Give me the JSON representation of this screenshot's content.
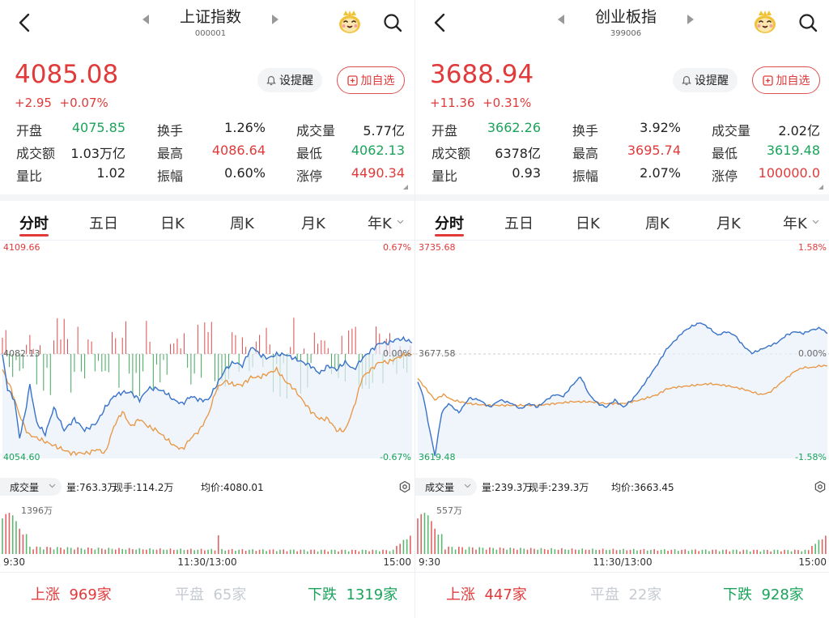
{
  "colors": {
    "up": "#e03a3a",
    "down": "#1aa35a",
    "flat_text": "#c6cbd2",
    "price_line": "#3873c9",
    "avg_line": "#e8953f",
    "area_fill": "#e9f0fa"
  },
  "icons": {
    "back": "chevron-left-icon",
    "prev": "triangle-left-icon",
    "next": "triangle-right-icon",
    "mascot": "mascot-icon",
    "search": "search-icon",
    "bell": "bell-icon",
    "add": "add-box-icon",
    "settings": "gear-icon",
    "dropdown": "chevron-down-icon"
  },
  "panels": [
    {
      "title": "上证指数",
      "code": "000001",
      "price": "4085.08",
      "change": "+2.95",
      "change_pct": "+0.07%",
      "alert_label": "设提醒",
      "watch_label": "加自选",
      "stats": [
        {
          "label": "开盘",
          "value": "4075.85",
          "color": "down"
        },
        {
          "label": "换手",
          "value": "1.26%",
          "color": "normal"
        },
        {
          "label": "成交量",
          "value": "5.77亿",
          "color": "normal"
        },
        {
          "label": "成交额",
          "value": "1.03万亿",
          "color": "normal"
        },
        {
          "label": "最高",
          "value": "4086.64",
          "color": "up"
        },
        {
          "label": "最低",
          "value": "4062.13",
          "color": "down"
        },
        {
          "label": "量比",
          "value": "1.02",
          "color": "normal"
        },
        {
          "label": "振幅",
          "value": "0.60%",
          "color": "normal"
        },
        {
          "label": "涨停",
          "value": "4490.34",
          "color": "up"
        }
      ],
      "tabs": [
        "分时",
        "五日",
        "日K",
        "周K",
        "月K",
        "年K"
      ],
      "axis": {
        "top_price": "4109.66",
        "top_pct": "0.67%",
        "mid_price": "4082.13",
        "mid_pct": "0.00%",
        "bot_price": "4054.60",
        "bot_pct": "-0.67%"
      },
      "volume_bar": {
        "label": "成交量",
        "vol": "量:763.3万",
        "now": "现手:114.2万",
        "avg": "均价:4080.01"
      },
      "vol_max_label": "1396万",
      "time_labels": [
        "9:30",
        "11:30/13:00",
        "15:00"
      ],
      "breadth": {
        "up_label": "上涨",
        "up_count": "969家",
        "flat_label": "平盘",
        "flat_count": "65家",
        "down_label": "下跌",
        "down_count": "1319家"
      },
      "chart_data": {
        "type": "line",
        "y_range": [
          4054.6,
          4109.66
        ],
        "prev_close": 4082.13,
        "n_points": 240,
        "price_series": {
          "name": "",
          "anchors": [
            [
              0,
              4082.0
            ],
            [
              3,
              4073
            ],
            [
              7,
              4070
            ],
            [
              10,
              4060
            ],
            [
              13,
              4066
            ],
            [
              16,
              4074
            ],
            [
              20,
              4064
            ],
            [
              25,
              4061
            ],
            [
              30,
              4068
            ],
            [
              36,
              4062
            ],
            [
              42,
              4065
            ],
            [
              48,
              4062
            ],
            [
              55,
              4064
            ],
            [
              60,
              4068
            ],
            [
              65,
              4071
            ],
            [
              70,
              4072
            ],
            [
              75,
              4072
            ],
            [
              80,
              4070
            ],
            [
              85,
              4073
            ],
            [
              90,
              4073
            ],
            [
              95,
              4072
            ],
            [
              100,
              4070
            ],
            [
              105,
              4069
            ],
            [
              110,
              4071
            ],
            [
              115,
              4070
            ],
            [
              120,
              4070
            ],
            [
              125,
              4074
            ],
            [
              130,
              4078
            ],
            [
              135,
              4080
            ],
            [
              140,
              4079
            ],
            [
              143,
              4082
            ],
            [
              146,
              4084
            ],
            [
              150,
              4082
            ],
            [
              155,
              4081
            ],
            [
              160,
              4082
            ],
            [
              165,
              4082
            ],
            [
              170,
              4081
            ],
            [
              175,
              4080
            ],
            [
              180,
              4079
            ],
            [
              185,
              4077
            ],
            [
              190,
              4079
            ],
            [
              195,
              4078
            ],
            [
              200,
              4080
            ],
            [
              205,
              4078
            ],
            [
              210,
              4081
            ],
            [
              215,
              4083
            ],
            [
              220,
              4085
            ],
            [
              225,
              4085
            ],
            [
              230,
              4086
            ],
            [
              235,
              4086
            ],
            [
              239,
              4085.08
            ]
          ]
        },
        "avg_series": {
          "name": "",
          "anchors": [
            [
              0,
              4078
            ],
            [
              5,
              4073
            ],
            [
              10,
              4066
            ],
            [
              15,
              4061
            ],
            [
              20,
              4060
            ],
            [
              25,
              4059
            ],
            [
              30,
              4058
            ],
            [
              35,
              4057
            ],
            [
              40,
              4056
            ],
            [
              45,
              4056
            ],
            [
              50,
              4056
            ],
            [
              55,
              4057
            ],
            [
              60,
              4056
            ],
            [
              65,
              4063
            ],
            [
              70,
              4067
            ],
            [
              75,
              4063
            ],
            [
              80,
              4065
            ],
            [
              85,
              4063
            ],
            [
              90,
              4062
            ],
            [
              95,
              4060
            ],
            [
              100,
              4058
            ],
            [
              105,
              4057
            ],
            [
              110,
              4060
            ],
            [
              115,
              4062
            ],
            [
              120,
              4066
            ],
            [
              125,
              4073
            ],
            [
              130,
              4075
            ],
            [
              135,
              4074
            ],
            [
              140,
              4074
            ],
            [
              145,
              4076
            ],
            [
              150,
              4076
            ],
            [
              155,
              4077
            ],
            [
              160,
              4078
            ],
            [
              165,
              4075
            ],
            [
              170,
              4073
            ],
            [
              175,
              4070
            ],
            [
              180,
              4067
            ],
            [
              185,
              4065
            ],
            [
              190,
              4065
            ],
            [
              195,
              4062
            ],
            [
              200,
              4062
            ],
            [
              205,
              4068
            ],
            [
              210,
              4076
            ],
            [
              215,
              4078
            ],
            [
              220,
              4080
            ],
            [
              225,
              4080
            ],
            [
              230,
              4081
            ],
            [
              235,
              4082
            ],
            [
              239,
              4082
            ]
          ]
        },
        "vol_max_wan": 1396
      }
    },
    {
      "title": "创业板指",
      "code": "399006",
      "price": "3688.94",
      "change": "+11.36",
      "change_pct": "+0.31%",
      "alert_label": "设提醒",
      "watch_label": "加自选",
      "stats": [
        {
          "label": "开盘",
          "value": "3662.26",
          "color": "down"
        },
        {
          "label": "换手",
          "value": "3.92%",
          "color": "normal"
        },
        {
          "label": "成交量",
          "value": "2.02亿",
          "color": "normal"
        },
        {
          "label": "成交额",
          "value": "6378亿",
          "color": "normal"
        },
        {
          "label": "最高",
          "value": "3695.74",
          "color": "up"
        },
        {
          "label": "最低",
          "value": "3619.48",
          "color": "down"
        },
        {
          "label": "量比",
          "value": "0.93",
          "color": "normal"
        },
        {
          "label": "振幅",
          "value": "2.07%",
          "color": "normal"
        },
        {
          "label": "涨停",
          "value": "100000.0",
          "color": "up"
        }
      ],
      "tabs": [
        "分时",
        "五日",
        "日K",
        "周K",
        "月K",
        "年K"
      ],
      "axis": {
        "top_price": "3735.68",
        "top_pct": "1.58%",
        "mid_price": "3677.58",
        "mid_pct": "0.00%",
        "bot_price": "3619.48",
        "bot_pct": "-1.58%"
      },
      "volume_bar": {
        "label": "成交量",
        "vol": "量:239.3万",
        "now": "现手:239.3万",
        "avg": "均价:3663.45"
      },
      "vol_max_label": "557万",
      "time_labels": [
        "9:30",
        "11:30/13:00",
        "15:00"
      ],
      "breadth": {
        "up_label": "上涨",
        "up_count": "447家",
        "flat_label": "平盘",
        "flat_count": "22家",
        "down_label": "下跌",
        "down_count": "928家"
      },
      "chart_data": {
        "type": "line",
        "y_range": [
          3619.48,
          3735.68
        ],
        "prev_close": 3677.58,
        "n_points": 240,
        "price_series": {
          "name": "",
          "anchors": [
            [
              0,
              3662
            ],
            [
              3,
              3655
            ],
            [
              6,
              3640
            ],
            [
              10,
              3621
            ],
            [
              14,
              3645
            ],
            [
              18,
              3650
            ],
            [
              24,
              3645
            ],
            [
              30,
              3653
            ],
            [
              36,
              3652
            ],
            [
              42,
              3648
            ],
            [
              48,
              3652
            ],
            [
              55,
              3650
            ],
            [
              60,
              3647
            ],
            [
              65,
              3650
            ],
            [
              70,
              3648
            ],
            [
              75,
              3652
            ],
            [
              80,
              3655
            ],
            [
              85,
              3654
            ],
            [
              90,
              3660
            ],
            [
              95,
              3665
            ],
            [
              100,
              3655
            ],
            [
              105,
              3650
            ],
            [
              110,
              3648
            ],
            [
              115,
              3652
            ],
            [
              120,
              3648
            ],
            [
              125,
              3652
            ],
            [
              130,
              3658
            ],
            [
              135,
              3665
            ],
            [
              140,
              3672
            ],
            [
              145,
              3680
            ],
            [
              150,
              3685
            ],
            [
              155,
              3690
            ],
            [
              160,
              3693
            ],
            [
              165,
              3695
            ],
            [
              170,
              3692
            ],
            [
              175,
              3688
            ],
            [
              180,
              3690
            ],
            [
              185,
              3688
            ],
            [
              190,
              3682
            ],
            [
              195,
              3678
            ],
            [
              200,
              3680
            ],
            [
              205,
              3682
            ],
            [
              210,
              3684
            ],
            [
              215,
              3688
            ],
            [
              220,
              3690
            ],
            [
              225,
              3689
            ],
            [
              230,
              3691
            ],
            [
              235,
              3692
            ],
            [
              239,
              3688.94
            ]
          ]
        },
        "avg_series": {
          "name": "",
          "anchors": [
            [
              0,
              3664
            ],
            [
              5,
              3658
            ],
            [
              10,
              3652
            ],
            [
              15,
              3655
            ],
            [
              20,
              3652
            ],
            [
              25,
              3651
            ],
            [
              30,
              3650
            ],
            [
              40,
              3649
            ],
            [
              50,
              3649
            ],
            [
              60,
              3649
            ],
            [
              70,
              3649
            ],
            [
              80,
              3650
            ],
            [
              90,
              3651
            ],
            [
              100,
              3651
            ],
            [
              110,
              3650
            ],
            [
              120,
              3650
            ],
            [
              130,
              3652
            ],
            [
              140,
              3655
            ],
            [
              145,
              3658
            ],
            [
              150,
              3659
            ],
            [
              160,
              3660
            ],
            [
              170,
              3661
            ],
            [
              180,
              3660
            ],
            [
              190,
              3658
            ],
            [
              200,
              3655
            ],
            [
              205,
              3656
            ],
            [
              210,
              3660
            ],
            [
              215,
              3664
            ],
            [
              220,
              3668
            ],
            [
              225,
              3670
            ],
            [
              230,
              3670
            ],
            [
              235,
              3671
            ],
            [
              239,
              3671
            ]
          ]
        },
        "vol_max_wan": 557
      }
    }
  ]
}
